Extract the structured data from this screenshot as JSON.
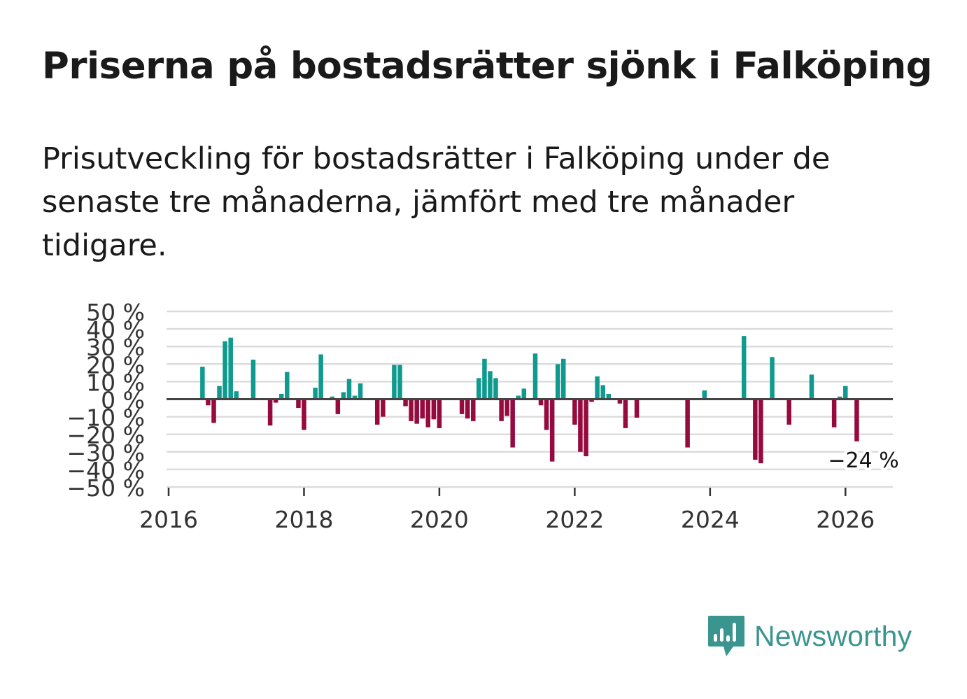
{
  "header": {
    "title": "Priserna på bostadsrätter sjönk i Falköping",
    "subtitle": "Prisutveckling för bostadsrätter i Falköping under de senaste tre månaderna, jämfört med tre månader tidigare."
  },
  "logo": {
    "text": "Newsworthy",
    "icon": "bar-chart-speech-bubble-icon"
  },
  "colors": {
    "positive": "#0f9a8f",
    "negative": "#960a3d",
    "grid": "#dcdcdc",
    "zero": "#444444",
    "brand": "#3a958f"
  },
  "chart_data": {
    "type": "bar",
    "title": "Priserna på bostadsrätter sjönk i Falköping",
    "xlabel": "",
    "ylabel": "",
    "ylim": [
      -50,
      50
    ],
    "yticks": [
      50,
      40,
      30,
      20,
      10,
      0,
      -10,
      -20,
      -30,
      -40,
      -50
    ],
    "ytick_labels": [
      "50 %",
      "40 %",
      "30 %",
      "20 %",
      "10 %",
      "0 %",
      "−10 %",
      "−20 %",
      "−30 %",
      "−40 %",
      "−50 %"
    ],
    "xticks": [
      2016,
      2018,
      2020,
      2022,
      2024,
      2026
    ],
    "xtick_labels": [
      "2016",
      "2018",
      "2020",
      "2022",
      "2024",
      "2026"
    ],
    "xlim": [
      2016,
      2026.7
    ],
    "annotation": {
      "text": "−24 %",
      "date": 2026.17,
      "value": -24
    },
    "series": [
      {
        "name": "Prisutveckling",
        "points": [
          {
            "date": 2016.5,
            "value": 18.5
          },
          {
            "date": 2016.583,
            "value": -3.5
          },
          {
            "date": 2016.667,
            "value": -13.5
          },
          {
            "date": 2016.75,
            "value": 7.5
          },
          {
            "date": 2016.833,
            "value": 33
          },
          {
            "date": 2016.917,
            "value": 35
          },
          {
            "date": 2017.0,
            "value": 4.5
          },
          {
            "date": 2017.25,
            "value": 22.5
          },
          {
            "date": 2017.5,
            "value": -15
          },
          {
            "date": 2017.583,
            "value": -2
          },
          {
            "date": 2017.667,
            "value": 3
          },
          {
            "date": 2017.75,
            "value": 15.5
          },
          {
            "date": 2017.917,
            "value": -5
          },
          {
            "date": 2018.0,
            "value": -17.5
          },
          {
            "date": 2018.167,
            "value": 6.5
          },
          {
            "date": 2018.25,
            "value": 25.5
          },
          {
            "date": 2018.417,
            "value": 1.5
          },
          {
            "date": 2018.5,
            "value": -8.5
          },
          {
            "date": 2018.583,
            "value": 4
          },
          {
            "date": 2018.667,
            "value": 11.5
          },
          {
            "date": 2018.75,
            "value": 2
          },
          {
            "date": 2018.833,
            "value": 9
          },
          {
            "date": 2018.917,
            "value": -0.5
          },
          {
            "date": 2019.083,
            "value": -14.5
          },
          {
            "date": 2019.167,
            "value": -10
          },
          {
            "date": 2019.333,
            "value": 19.5
          },
          {
            "date": 2019.417,
            "value": 19.5
          },
          {
            "date": 2019.5,
            "value": -4
          },
          {
            "date": 2019.583,
            "value": -12.5
          },
          {
            "date": 2019.667,
            "value": -14
          },
          {
            "date": 2019.75,
            "value": -11
          },
          {
            "date": 2019.833,
            "value": -16
          },
          {
            "date": 2019.917,
            "value": -11.5
          },
          {
            "date": 2020.0,
            "value": -16.5
          },
          {
            "date": 2020.333,
            "value": -8.5
          },
          {
            "date": 2020.417,
            "value": -11
          },
          {
            "date": 2020.5,
            "value": -12.5
          },
          {
            "date": 2020.583,
            "value": 12
          },
          {
            "date": 2020.667,
            "value": 23
          },
          {
            "date": 2020.75,
            "value": 16
          },
          {
            "date": 2020.833,
            "value": 12
          },
          {
            "date": 2020.917,
            "value": -12.5
          },
          {
            "date": 2021.0,
            "value": -9.5
          },
          {
            "date": 2021.083,
            "value": -27.5
          },
          {
            "date": 2021.167,
            "value": 2
          },
          {
            "date": 2021.25,
            "value": 6
          },
          {
            "date": 2021.417,
            "value": 26
          },
          {
            "date": 2021.5,
            "value": -3.5
          },
          {
            "date": 2021.583,
            "value": -17.5
          },
          {
            "date": 2021.667,
            "value": -35.5
          },
          {
            "date": 2021.75,
            "value": 20
          },
          {
            "date": 2021.833,
            "value": 23
          },
          {
            "date": 2022.0,
            "value": -14.5
          },
          {
            "date": 2022.083,
            "value": -30
          },
          {
            "date": 2022.167,
            "value": -32.5
          },
          {
            "date": 2022.25,
            "value": -1.5
          },
          {
            "date": 2022.333,
            "value": 13
          },
          {
            "date": 2022.417,
            "value": 8
          },
          {
            "date": 2022.5,
            "value": 3
          },
          {
            "date": 2022.667,
            "value": -2.5
          },
          {
            "date": 2022.75,
            "value": -16.5
          },
          {
            "date": 2022.917,
            "value": -10.5
          },
          {
            "date": 2023.667,
            "value": -27.5
          },
          {
            "date": 2023.917,
            "value": 5
          },
          {
            "date": 2024.5,
            "value": 36
          },
          {
            "date": 2024.667,
            "value": -34.5
          },
          {
            "date": 2024.75,
            "value": -36.5
          },
          {
            "date": 2024.917,
            "value": 24
          },
          {
            "date": 2025.167,
            "value": -14.5
          },
          {
            "date": 2025.5,
            "value": 14
          },
          {
            "date": 2025.75,
            "value": 0.5
          },
          {
            "date": 2025.833,
            "value": -16
          },
          {
            "date": 2025.917,
            "value": 1.5
          },
          {
            "date": 2026.0,
            "value": 7.5
          },
          {
            "date": 2026.167,
            "value": -24
          }
        ]
      }
    ]
  }
}
